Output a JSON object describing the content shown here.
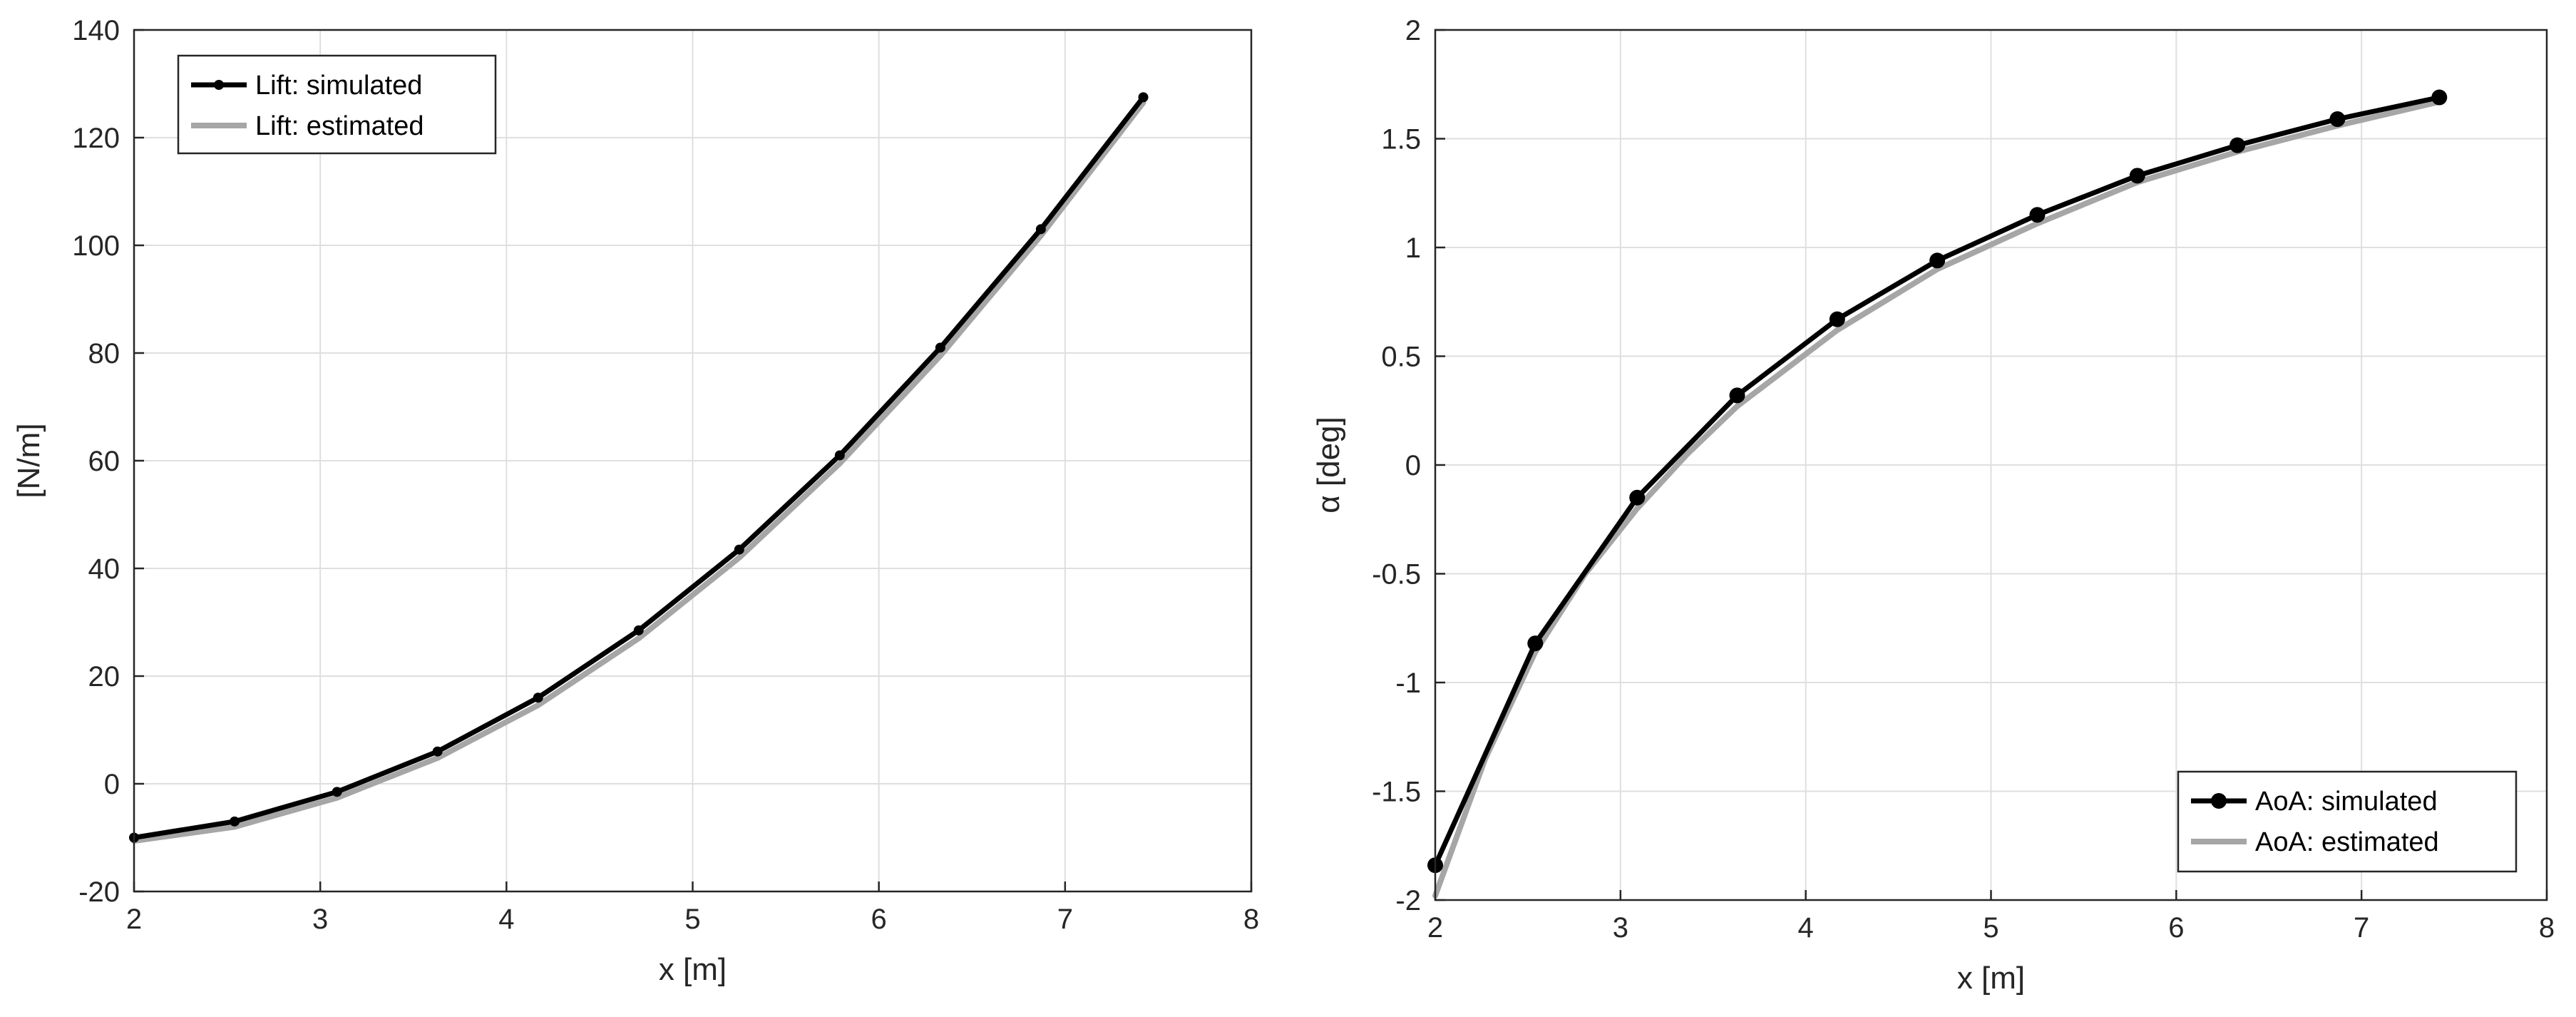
{
  "colors": {
    "simulated": "#000000",
    "estimated": "#a6a6a6",
    "grid": "#dfdfdf",
    "axis": "#262626"
  },
  "chart_data": [
    {
      "type": "line",
      "xlabel": "x [m]",
      "ylabel": "[N/m]",
      "xlim": [
        2,
        8
      ],
      "ylim": [
        -20,
        140
      ],
      "xticks": [
        "2",
        "3",
        "4",
        "5",
        "6",
        "7",
        "8"
      ],
      "yticks": [
        "-20",
        "0",
        "20",
        "40",
        "60",
        "80",
        "100",
        "120",
        "140"
      ],
      "grid": true,
      "legend_position": "top-left",
      "series": [
        {
          "name": "Lift: simulated",
          "marker": "dot-small",
          "x": [
            2.0,
            2.54,
            3.09,
            3.63,
            4.17,
            4.71,
            5.25,
            5.79,
            6.33,
            6.87,
            7.42
          ],
          "y": [
            -10.0,
            -7.0,
            -1.5,
            6.0,
            16.0,
            28.5,
            43.5,
            61.0,
            81.0,
            103.0,
            127.5
          ]
        },
        {
          "name": "Lift: estimated",
          "x": [
            2.0,
            2.54,
            3.09,
            3.63,
            4.17,
            4.71,
            5.25,
            5.79,
            6.33,
            6.87,
            7.42
          ],
          "y": [
            -10.6,
            -8.0,
            -2.6,
            4.8,
            14.6,
            27.0,
            42.0,
            59.5,
            79.5,
            101.8,
            126.5
          ]
        }
      ]
    },
    {
      "type": "line",
      "xlabel": "x [m]",
      "ylabel": "α [deg]",
      "xlim": [
        2,
        8
      ],
      "ylim": [
        -2,
        2
      ],
      "xticks": [
        "2",
        "3",
        "4",
        "5",
        "6",
        "7",
        "8"
      ],
      "yticks": [
        "-2",
        "-1.5",
        "-1",
        "-0.5",
        "0",
        "0.5",
        "1",
        "1.5",
        "2"
      ],
      "grid": true,
      "legend_position": "bottom-right",
      "series": [
        {
          "name": "AoA: simulated",
          "marker": "dot-large",
          "x": [
            2.0,
            2.54,
            3.09,
            3.63,
            4.17,
            4.71,
            5.25,
            5.79,
            6.33,
            6.87,
            7.42
          ],
          "y": [
            -1.84,
            -0.82,
            -0.15,
            0.32,
            0.67,
            0.94,
            1.15,
            1.33,
            1.47,
            1.59,
            1.69
          ]
        },
        {
          "name": "AoA: estimated",
          "x": [
            2.0,
            2.27,
            2.54,
            2.81,
            3.09,
            3.36,
            3.63,
            4.17,
            4.71,
            5.25,
            5.79,
            6.33,
            6.87,
            7.42
          ],
          "y": [
            -1.98,
            -1.35,
            -0.86,
            -0.5,
            -0.2,
            0.05,
            0.27,
            0.62,
            0.9,
            1.11,
            1.3,
            1.44,
            1.56,
            1.67
          ]
        }
      ]
    }
  ]
}
